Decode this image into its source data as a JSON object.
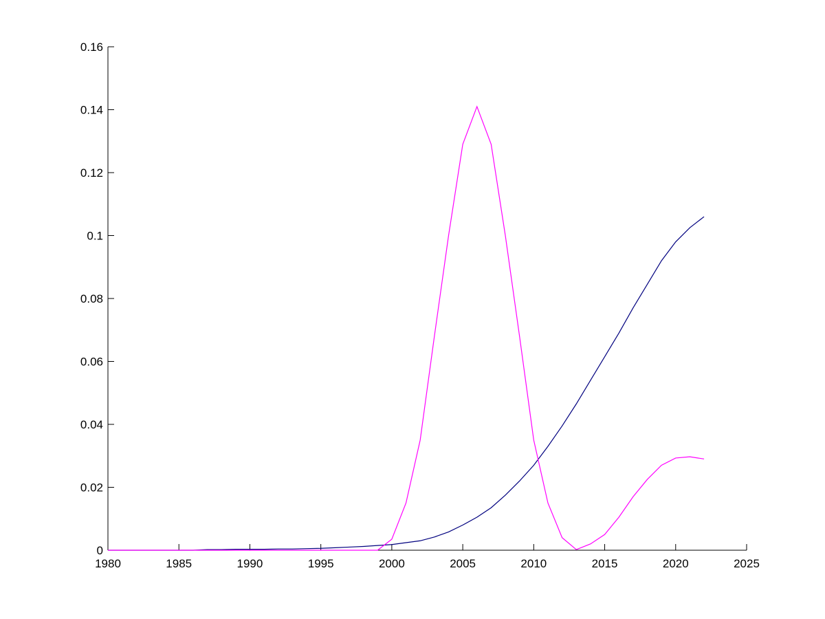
{
  "chart_data": {
    "type": "line",
    "x": [
      1980,
      1981,
      1982,
      1983,
      1984,
      1985,
      1986,
      1987,
      1988,
      1989,
      1990,
      1991,
      1992,
      1993,
      1994,
      1995,
      1996,
      1997,
      1998,
      1999,
      2000,
      2001,
      2002,
      2003,
      2004,
      2005,
      2006,
      2007,
      2008,
      2009,
      2010,
      2011,
      2012,
      2013,
      2014,
      2015,
      2016,
      2017,
      2018,
      2019,
      2020,
      2021,
      2022
    ],
    "series": [
      {
        "color": "#00007f",
        "values": [
          0,
          0,
          0,
          0,
          0,
          0,
          0,
          0.0002,
          0.0002,
          0.0003,
          0.0003,
          0.0003,
          0.0004,
          0.0004,
          0.0005,
          0.0006,
          0.0008,
          0.001,
          0.0012,
          0.0015,
          0.0018,
          0.0024,
          0.003,
          0.0042,
          0.0058,
          0.008,
          0.0105,
          0.0135,
          0.0175,
          0.022,
          0.027,
          0.033,
          0.0395,
          0.0465,
          0.054,
          0.0615,
          0.069,
          0.077,
          0.0845,
          0.092,
          0.098,
          0.1025,
          0.106
        ]
      },
      {
        "color": "#ff00ff",
        "values": [
          0,
          0,
          0,
          0,
          0,
          0,
          0,
          0,
          0,
          0,
          0,
          0,
          0,
          0,
          0,
          0,
          0,
          0,
          0,
          0,
          0.0035,
          0.015,
          0.035,
          0.068,
          0.1,
          0.129,
          0.141,
          0.129,
          0.1,
          0.068,
          0.035,
          0.015,
          0.004,
          0.0002,
          0.002,
          0.005,
          0.0105,
          0.017,
          0.0225,
          0.027,
          0.0293,
          0.0297,
          0.029
        ]
      }
    ],
    "xlim": [
      1980,
      2025
    ],
    "xticks": [
      1980,
      1985,
      1990,
      1995,
      2000,
      2005,
      2010,
      2015,
      2020,
      2025
    ],
    "ylim": [
      0,
      0.16
    ],
    "yticks": [
      0,
      0.02,
      0.04,
      0.06,
      0.08,
      0.1,
      0.12,
      0.14,
      0.16
    ]
  }
}
